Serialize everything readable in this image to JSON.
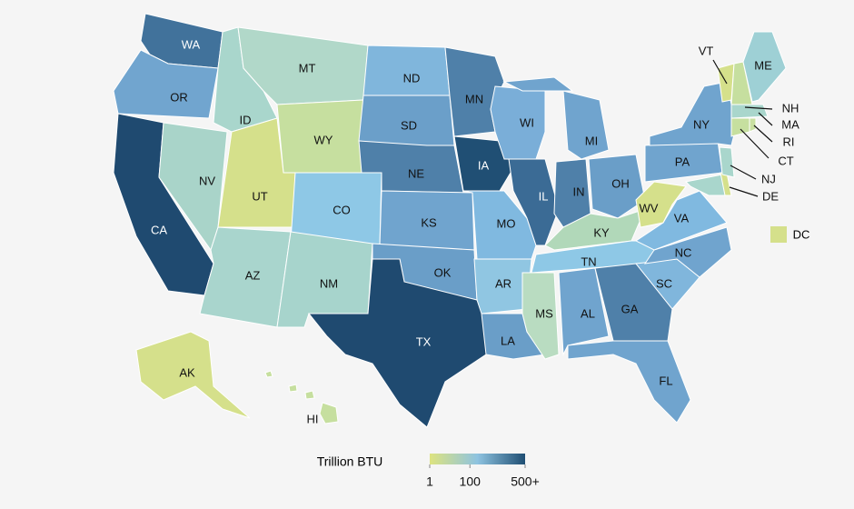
{
  "map": {
    "states": [
      {
        "label": "WA",
        "color": "#41729b"
      },
      {
        "label": "OR",
        "color": "#71a5cf"
      },
      {
        "label": "CA",
        "color": "#1f4a70"
      },
      {
        "label": "NV",
        "color": "#a9d4c9"
      },
      {
        "label": "ID",
        "color": "#a9d6cc"
      },
      {
        "label": "MT",
        "color": "#b1d8c9"
      },
      {
        "label": "WY",
        "color": "#c6df9f"
      },
      {
        "label": "UT",
        "color": "#d5e08b"
      },
      {
        "label": "CO",
        "color": "#8ec8e6"
      },
      {
        "label": "AZ",
        "color": "#a9d5cd"
      },
      {
        "label": "NM",
        "color": "#a7d4cc"
      },
      {
        "label": "ND",
        "color": "#80b6dc"
      },
      {
        "label": "SD",
        "color": "#6b9fc9"
      },
      {
        "label": "NE",
        "color": "#4f80a9"
      },
      {
        "label": "KS",
        "color": "#70a4ce"
      },
      {
        "label": "OK",
        "color": "#6a9ec8"
      },
      {
        "label": "TX",
        "color": "#1f4a70"
      },
      {
        "label": "MN",
        "color": "#4f80a9"
      },
      {
        "label": "IA",
        "color": "#204f74"
      },
      {
        "label": "MO",
        "color": "#80b9e0"
      },
      {
        "label": "AR",
        "color": "#90c6e2"
      },
      {
        "label": "LA",
        "color": "#6a9ec8"
      },
      {
        "label": "WI",
        "color": "#7aaed8"
      },
      {
        "label": "IL",
        "color": "#3b6b95"
      },
      {
        "label": "MI",
        "color": "#70a4ce"
      },
      {
        "label": "IN",
        "color": "#4f80a9"
      },
      {
        "label": "OH",
        "color": "#6a9ec8"
      },
      {
        "label": "KY",
        "color": "#b1d8b9"
      },
      {
        "label": "TN",
        "color": "#8ec8e6"
      },
      {
        "label": "MS",
        "color": "#b9dcc1"
      },
      {
        "label": "AL",
        "color": "#70a4ce"
      },
      {
        "label": "GA",
        "color": "#4f80a9"
      },
      {
        "label": "FL",
        "color": "#70a4ce"
      },
      {
        "label": "SC",
        "color": "#80b6dc"
      },
      {
        "label": "NC",
        "color": "#70a4ce"
      },
      {
        "label": "VA",
        "color": "#80b9e0"
      },
      {
        "label": "WV",
        "color": "#d5e08b"
      },
      {
        "label": "PA",
        "color": "#70a4ce"
      },
      {
        "label": "NY",
        "color": "#70a4ce"
      },
      {
        "label": null,
        "color": "#a9d6cc"
      },
      {
        "label": "DE",
        "color": "#d5e08b"
      },
      {
        "label": "NJ",
        "color": "#a9d6cc"
      },
      {
        "label": "VT",
        "color": "#d5e08b"
      },
      {
        "label": "NH",
        "color": "#c6df9f"
      },
      {
        "label": "ME",
        "color": "#9ed0d5"
      },
      {
        "label": "MA",
        "color": "#a9d6cc"
      },
      {
        "label": "CT",
        "color": "#c6df9f"
      },
      {
        "label": "RI",
        "color": "#c9e0a1"
      },
      {
        "label": "AK",
        "color": "#d5e08b"
      },
      {
        "label": "HI",
        "color": "#c6df9f"
      }
    ],
    "dc": {
      "label": "DC",
      "color": "#d5e08b"
    },
    "legend": {
      "title": "Trillion BTU",
      "scale": "sqrt",
      "range": [
        1,
        500
      ],
      "colors": [
        "#dde37f",
        "#8ec3e0",
        "#1f4e73"
      ],
      "ticks": [
        1,
        100,
        {
          "value": 500,
          "label": "500+"
        }
      ]
    }
  }
}
